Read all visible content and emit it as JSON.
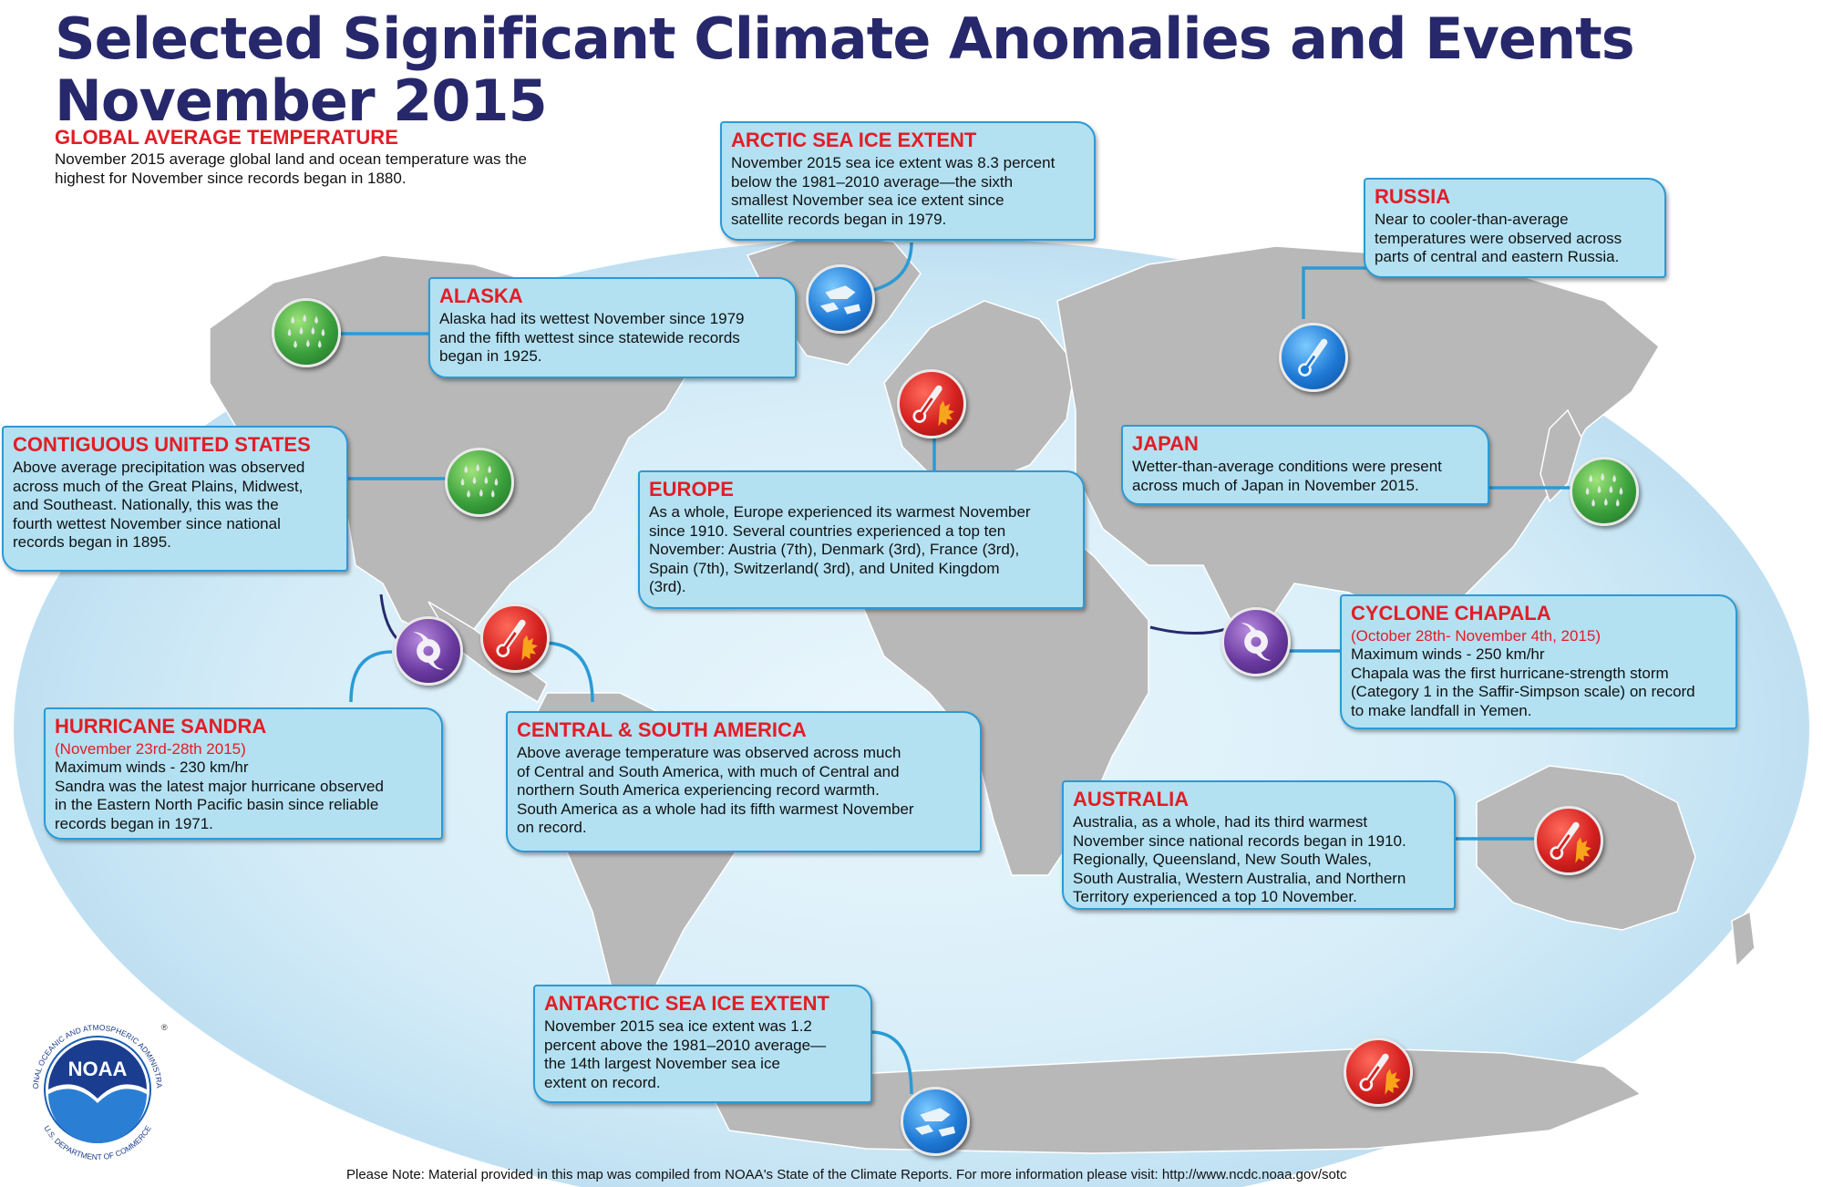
{
  "header": {
    "title_line1": "Selected Significant Climate Anomalies and Events",
    "title_line2": "November 2015"
  },
  "global_average_temperature": {
    "heading": "GLOBAL AVERAGE TEMPERATURE",
    "line1": "November 2015 average global land and ocean temperature",
    "line2": "was the highest for November since records began in 1880."
  },
  "events": {
    "arctic": {
      "heading": "ARCTIC SEA ICE EXTENT",
      "lines": [
        "November 2015 sea ice extent was 8.3 percent",
        "below the 1981–2010 average—the sixth",
        "smallest November sea ice extent since",
        "satellite records began in 1979."
      ],
      "icon": "sea-ice-icon"
    },
    "russia": {
      "heading": "RUSSIA",
      "lines": [
        "Near to cooler-than-average",
        "temperatures were observed across",
        "parts of central and eastern Russia."
      ],
      "icon": "cold-thermometer-icon"
    },
    "alaska": {
      "heading": "ALASKA",
      "lines": [
        "Alaska had its wettest November since 1979",
        "and the fifth wettest since statewide records",
        "began in 1925."
      ],
      "icon": "rain-drops-icon"
    },
    "contiguous_us": {
      "heading": "CONTIGUOUS UNITED STATES",
      "lines": [
        "Above average precipitation was observed",
        "across much of the Great Plains, Midwest,",
        "and Southeast. Nationally, this was the",
        "fourth wettest November since national",
        "records began in 1895."
      ],
      "icon": "rain-drops-icon"
    },
    "japan": {
      "heading": "JAPAN",
      "lines": [
        "Wetter-than-average conditions were present",
        "across much of Japan in November 2015."
      ],
      "icon": "rain-drops-icon"
    },
    "europe": {
      "heading": "EUROPE",
      "lines": [
        "As a whole, Europe experienced its warmest November",
        "since 1910. Several countries experienced a top ten",
        "November: Austria (7th), Denmark (3rd), France (3rd),",
        "Spain (7th),  Switzerland( 3rd), and United Kingdom",
        "(3rd)."
      ],
      "icon": "heat-thermometer-icon"
    },
    "cyclone_chapala": {
      "heading": "CYCLONE CHAPALA",
      "dates": "(October 28th- November 4th, 2015)",
      "lines": [
        "Maximum winds - 250 km/hr",
        "Chapala  was the first hurricane-strength storm",
        "(Category 1 in the Saffir-Simpson scale) on record",
        "to make landfall in Yemen."
      ],
      "icon": "hurricane-icon"
    },
    "hurricane_sandra": {
      "heading": "HURRICANE SANDRA",
      "dates": "(November 23rd-28th 2015)",
      "lines": [
        "Maximum winds - 230 km/hr",
        "Sandra was the latest major hurricane observed",
        "in the Eastern North Pacific basin since reliable",
        "records began in 1971."
      ],
      "icon": "hurricane-icon"
    },
    "central_south_america": {
      "heading": "CENTRAL & SOUTH AMERICA",
      "lines": [
        "Above average temperature was observed across much",
        "of Central and South America, with much of Central and",
        "northern South America experiencing record warmth.",
        "South America as a whole had its fifth warmest November",
        "on record."
      ],
      "icon": "heat-thermometer-icon"
    },
    "australia": {
      "heading": "AUSTRALIA",
      "lines": [
        "Australia, as a whole, had its third warmest",
        "November since national records began in 1910.",
        "Regionally, Queensland, New South Wales,",
        "South Australia, Western Australia, and Northern",
        "Territory experienced a top 10 November."
      ],
      "icon": "heat-thermometer-icon"
    },
    "antarctic": {
      "heading": "ANTARCTIC SEA ICE EXTENT",
      "lines": [
        "November 2015 sea ice extent was 1.2",
        "percent above the 1981–2010 average—",
        "the 14th largest November sea ice",
        "extent on record."
      ],
      "icon": "sea-ice-icon"
    }
  },
  "logo": {
    "text": "NOAA",
    "ring_top": "NATIONAL OCEANIC AND ATMOSPHERIC ADMINISTRATION",
    "ring_bottom": "U.S. DEPARTMENT OF COMMERCE",
    "registered": "®"
  },
  "footer": {
    "note": "Please Note: Material provided in this map was compiled from NOAA's State of the Climate Reports. For more information please visit: http://www.ncdc.noaa.gov/sotc"
  },
  "colors": {
    "title": "#27286b",
    "heading_red": "#e21d26",
    "box_fill": "#b3e1f2",
    "box_border": "#2b9ad6",
    "ocean": "#d4ebf7",
    "land": "#b9b9b9"
  }
}
